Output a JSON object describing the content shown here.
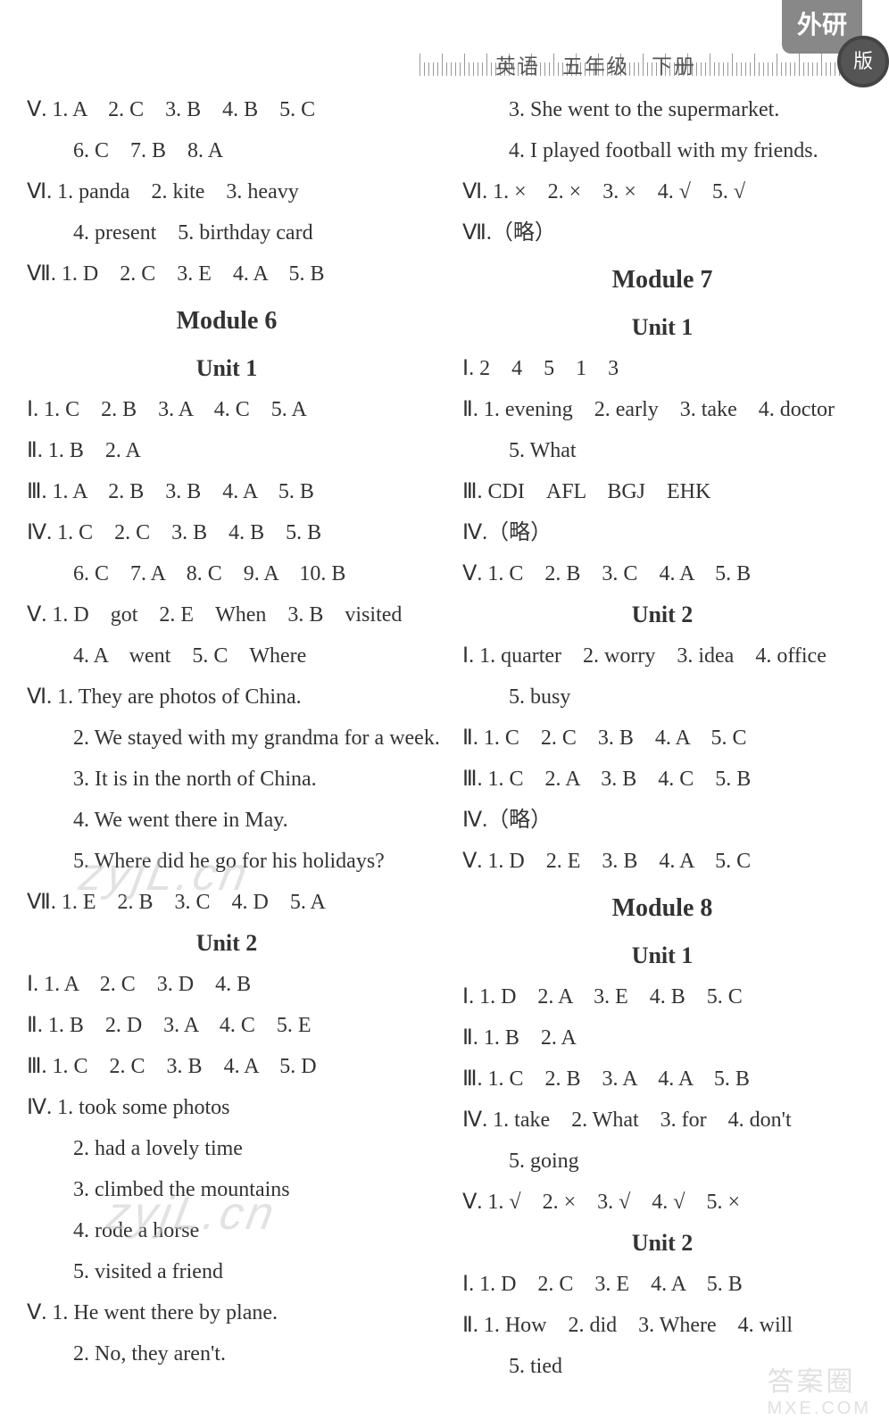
{
  "header": {
    "subject": "英语　五年级　下册",
    "tab": "外研",
    "circle": "版"
  },
  "watermarks": {
    "w1": "zyjL.cn",
    "w2": "zyjL.cn",
    "bottom": "答案圈\nMXE.COM"
  },
  "left": {
    "l1": "Ⅴ. 1. A　2. C　3. B　4. B　5. C",
    "l2": "6. C　7. B　8. A",
    "l3": "Ⅵ. 1. panda　2. kite　3. heavy",
    "l4": "4. present　5. birthday card",
    "l5": "Ⅶ. 1. D　2. C　3. E　4. A　5. B",
    "mod6": "Module 6",
    "u1": "Unit 1",
    "l6": "Ⅰ. 1. C　2. B　3. A　4. C　5. A",
    "l7": "Ⅱ. 1. B　2. A",
    "l8": "Ⅲ. 1. A　2. B　3. B　4. A　5. B",
    "l9": "Ⅳ. 1. C　2. C　3. B　4. B　5. B",
    "l10": "6. C　7. A　8. C　9. A　10. B",
    "l11": "Ⅴ. 1. D　got　2. E　When　3. B　visited",
    "l12": "4. A　went　5. C　Where",
    "l13": "Ⅵ. 1. They are photos of China.",
    "l14": "2. We stayed with my grandma for a week.",
    "l15": "3. It is in the north of China.",
    "l16": "4. We went there in May.",
    "l17": "5. Where did he go for his holidays?",
    "l18": "Ⅶ. 1. E　2. B　3. C　4. D　5. A",
    "u2": "Unit 2",
    "l19": "Ⅰ. 1. A　2. C　3. D　4. B",
    "l20": "Ⅱ. 1. B　2. D　3. A　4. C　5. E",
    "l21": "Ⅲ. 1. C　2. C　3. B　4. A　5. D",
    "l22": "Ⅳ. 1. took some photos",
    "l23": "2. had a lovely time",
    "l24": "3. climbed the mountains",
    "l25": "4. rode a horse",
    "l26": "5. visited a friend",
    "l27": "Ⅴ. 1. He went there by plane.",
    "l28": "2. No, they aren't."
  },
  "right": {
    "r1": "3. She went to the supermarket.",
    "r2": "4. I played football with my friends.",
    "r3": "Ⅵ. 1. ×　2. ×　3. ×　4. √　5. √",
    "r4": "Ⅶ.（略）",
    "mod7": "Module 7",
    "u1": "Unit 1",
    "r5": "Ⅰ. 2　4　5　1　3",
    "r6": "Ⅱ. 1. evening　2. early　3. take　4. doctor",
    "r7": "5. What",
    "r8": "Ⅲ. CDI　AFL　BGJ　EHK",
    "r9": "Ⅳ.（略）",
    "r10": "Ⅴ. 1. C　2. B　3. C　4. A　5. B",
    "u2": "Unit 2",
    "r11": "Ⅰ. 1. quarter　2. worry　3. idea　4. office",
    "r12": "5. busy",
    "r13": "Ⅱ. 1. C　2. C　3. B　4. A　5. C",
    "r14": "Ⅲ. 1. C　2. A　3. B　4. C　5. B",
    "r15": "Ⅳ.（略）",
    "r16": "Ⅴ. 1. D　2. E　3. B　4. A　5. C",
    "mod8": "Module 8",
    "u1b": "Unit 1",
    "r17": "Ⅰ. 1. D　2. A　3. E　4. B　5. C",
    "r18": "Ⅱ. 1. B　2. A",
    "r19": "Ⅲ. 1. C　2. B　3. A　4. A　5. B",
    "r20": "Ⅳ. 1. take　2. What　3. for　4. don't",
    "r21": "5. going",
    "r22": "Ⅴ. 1. √　2. ×　3. √　4. √　5. ×",
    "u2b": "Unit 2",
    "r23": "Ⅰ. 1. D　2. C　3. E　4. A　5. B",
    "r24": "Ⅱ. 1. How　2. did　3. Where　4. will",
    "r25": "5. tied"
  }
}
